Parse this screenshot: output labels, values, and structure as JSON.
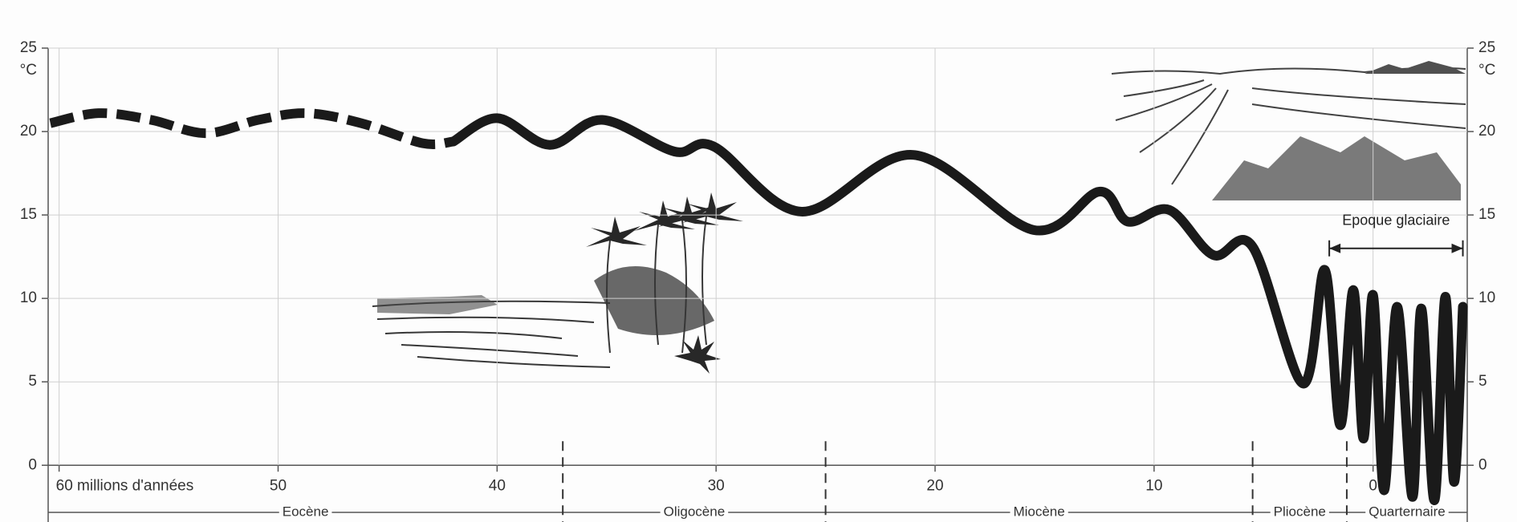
{
  "chart_data": {
    "type": "line",
    "y_unit": "°C",
    "xlim": [
      60.5,
      -4.3
    ],
    "ylim": [
      -3.4,
      25
    ],
    "xticks": [
      {
        "value": 60,
        "label": "60 millions d'années"
      },
      50,
      40,
      30,
      20,
      10,
      0
    ],
    "yticks": [
      0,
      5,
      10,
      15,
      20,
      25
    ],
    "grid": true,
    "series": [
      {
        "color": "#1a1a1a",
        "dashed": true,
        "x": [
          60.4,
          58.2,
          55.8,
          53.3,
          50.9,
          48.7,
          46.2,
          43.4,
          42
        ],
        "values": [
          20.5,
          21.1,
          20.7,
          19.9,
          20.7,
          21.1,
          20.5,
          19.3,
          19.4
        ]
      },
      {
        "color": "#1a1a1a",
        "dashed": false,
        "x": [
          42,
          40,
          37.6,
          35.2,
          31.9,
          30.1,
          26.1,
          21,
          15.5,
          12.5,
          11.2,
          9.3,
          7.3,
          5.5,
          3.2,
          2.2,
          1.5,
          0.9,
          0.44,
          0,
          -0.5,
          -1.1,
          -1.8,
          -2.2,
          -2.8,
          -3.3,
          -3.7,
          -4.1
        ],
        "values": [
          19.4,
          20.8,
          19.2,
          20.7,
          18.8,
          19.1,
          15.2,
          18.6,
          14.1,
          16.4,
          14.6,
          15.3,
          12.6,
          13.1,
          4.9,
          11.7,
          2.4,
          10.5,
          1.6,
          10.2,
          -1.5,
          9.5,
          -1.9,
          9.4,
          -2.1,
          10.1,
          -1.0,
          9.5
        ]
      }
    ],
    "epochs": {
      "boundaries": [
        37,
        25,
        5.5,
        1.2
      ],
      "labels": [
        "Eocène",
        "Oligocène",
        "Miocène",
        "Pliocène",
        "Quarternaire"
      ]
    },
    "annotation": {
      "text": "Epoque glaciaire",
      "x": [
        2,
        -4.1
      ],
      "y": 13
    }
  }
}
